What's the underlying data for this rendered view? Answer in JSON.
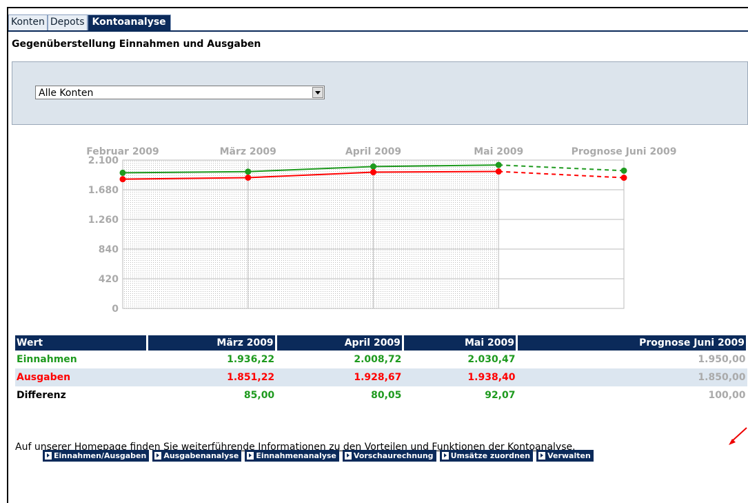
{
  "tabs": [
    "Konten",
    "Depots",
    "Kontoanalyse"
  ],
  "heading": "Gegenüberstellung Einnahmen und Ausgaben",
  "select": "Alle Konten",
  "chart_data": {
    "type": "line",
    "categories": [
      "Februar 2009",
      "März 2009",
      "April 2009",
      "Mai 2009",
      "Prognose Juni 2009"
    ],
    "series": [
      {
        "color": "#1e9a1e",
        "values": [
          1920,
          1936.22,
          2008.72,
          2030.47,
          1950
        ]
      },
      {
        "color": "#ff0000",
        "values": [
          1830,
          1851.22,
          1928.67,
          1938.4,
          1850
        ]
      }
    ],
    "ylim": [
      0,
      2100
    ],
    "yticks": [
      0,
      420,
      840,
      {
        "value": 1260,
        "label": "1.260"
      },
      {
        "value": 1680,
        "label": "1.680"
      },
      {
        "value": 2100,
        "label": "2.100"
      }
    ],
    "grid": true
  },
  "table": {
    "header": [
      "Wert",
      "März 2009",
      "April 2009",
      "Mai 2009",
      "Prognose Juni 2009"
    ],
    "rows": [
      [
        "Einnahmen",
        "1.936,22",
        "2.008,72",
        "2.030,47",
        "1.950,00"
      ],
      [
        "Ausgaben",
        "1.851,22",
        "1.928,67",
        "1.938,40",
        "1.850,00"
      ],
      [
        "Differenz",
        "85,00",
        "80,05",
        "92,07",
        "100,00"
      ]
    ]
  },
  "footer": {
    "text": "Auf unserer Homepage finden Sie ",
    "link": "weiterführende Informationen zu den Vorteilen und Funktionen der Kontoanalyse."
  },
  "buttons": [
    "Einnahmen/Ausgaben",
    "Ausgabenanalyse",
    "Einnahmenanalyse",
    "Vorschaurechnung",
    "Umsätze zuordnen",
    "Verwalten"
  ]
}
